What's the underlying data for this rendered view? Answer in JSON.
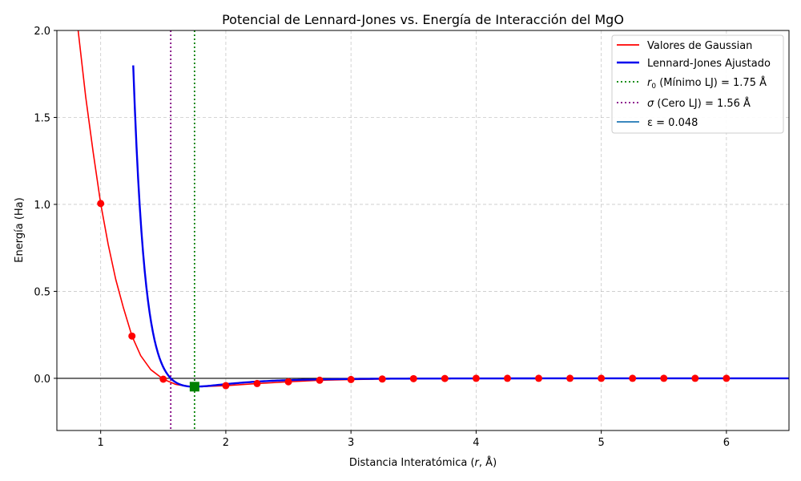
{
  "chart_data": {
    "type": "line",
    "title": "Potencial de Lennard-Jones vs. Energía de Interacción del MgO",
    "xlabel": "Distancia Interatómica (r, Å)",
    "ylabel": "Energía (Ha)",
    "xlim": [
      0.65,
      6.5
    ],
    "ylim": [
      -0.3,
      2.0
    ],
    "xticks": [
      1,
      2,
      3,
      4,
      5,
      6
    ],
    "yticks": [
      0.0,
      0.5,
      1.0,
      1.5,
      2.0
    ],
    "xtick_labels": [
      "1",
      "2",
      "3",
      "4",
      "5",
      "6"
    ],
    "ytick_labels": [
      "0.0",
      "0.5",
      "1.0",
      "1.5",
      "2.0"
    ],
    "grid": true,
    "legend_position": "top-right",
    "series": [
      {
        "name": "Valores de Gaussian",
        "color": "#ff0000",
        "style": "thin-line-with-markers",
        "points": {
          "x": [
            1.0,
            1.25,
            1.5,
            1.75,
            2.0,
            2.25,
            2.5,
            2.75,
            3.0,
            3.25,
            3.5,
            3.75,
            4.0,
            4.25,
            4.5,
            4.75,
            5.0,
            5.25,
            5.5,
            5.75,
            6.0
          ],
          "y": [
            1.005,
            0.243,
            -0.005,
            -0.048,
            -0.042,
            -0.03,
            -0.02,
            -0.011,
            -0.007,
            -0.004,
            -0.002,
            -0.001,
            0.0,
            0.0,
            0.0,
            0.0,
            0.0,
            0.0,
            0.0,
            0.0,
            0.0
          ]
        },
        "curve": {
          "x": [
            0.82,
            0.88,
            0.94,
            1.0,
            1.06,
            1.12,
            1.18,
            1.25,
            1.32,
            1.4,
            1.5,
            1.6,
            1.7,
            1.75,
            1.85,
            2.0,
            2.25,
            2.5,
            2.75,
            3.0,
            3.25,
            3.5,
            4.0,
            5.0,
            6.0
          ],
          "y": [
            2.0,
            1.62,
            1.3,
            1.005,
            0.77,
            0.57,
            0.41,
            0.243,
            0.13,
            0.05,
            -0.005,
            -0.035,
            -0.047,
            -0.048,
            -0.046,
            -0.042,
            -0.03,
            -0.02,
            -0.011,
            -0.007,
            -0.004,
            -0.002,
            0.0,
            0.0,
            0.0
          ]
        }
      },
      {
        "name": "Lennard-Jones Ajustado",
        "color": "#0000ee",
        "style": "thick-line",
        "model": {
          "epsilon": 0.048,
          "sigma": 1.56,
          "x_start": 1.26,
          "x_end": 6.5
        }
      }
    ],
    "reference_lines": [
      {
        "name": "r0 (Mínimo LJ) = 1.75 Å",
        "x": 1.75,
        "color": "#008000"
      },
      {
        "name": "σ (Cero LJ) = 1.56 Å",
        "x": 1.56,
        "color": "#800080"
      }
    ],
    "minimum_marker": {
      "x": 1.75,
      "y": -0.048,
      "color": "#008000"
    },
    "horizontal_line": {
      "y": 0.0,
      "color": "#000000"
    },
    "legend": {
      "entries": [
        {
          "label": "Valores de Gaussian",
          "color": "#ff0000",
          "style": "solid"
        },
        {
          "label": "Lennard-Jones Ajustado",
          "color": "#0000ee",
          "style": "solid-thick"
        },
        {
          "label": "r0_label",
          "color": "#008000",
          "style": "dotted"
        },
        {
          "label": "sigma_label",
          "color": "#800080",
          "style": "dotted"
        },
        {
          "label": "ε = 0.048",
          "color": "#1f77b4",
          "style": "solid"
        }
      ],
      "r0_label": {
        "symbol": "r",
        "subscript": "0",
        "rest": " (Mínimo LJ) = 1.75 Å"
      },
      "sigma_label": {
        "symbol": "σ",
        "rest": " (Cero LJ) = 1.56 Å"
      }
    }
  }
}
